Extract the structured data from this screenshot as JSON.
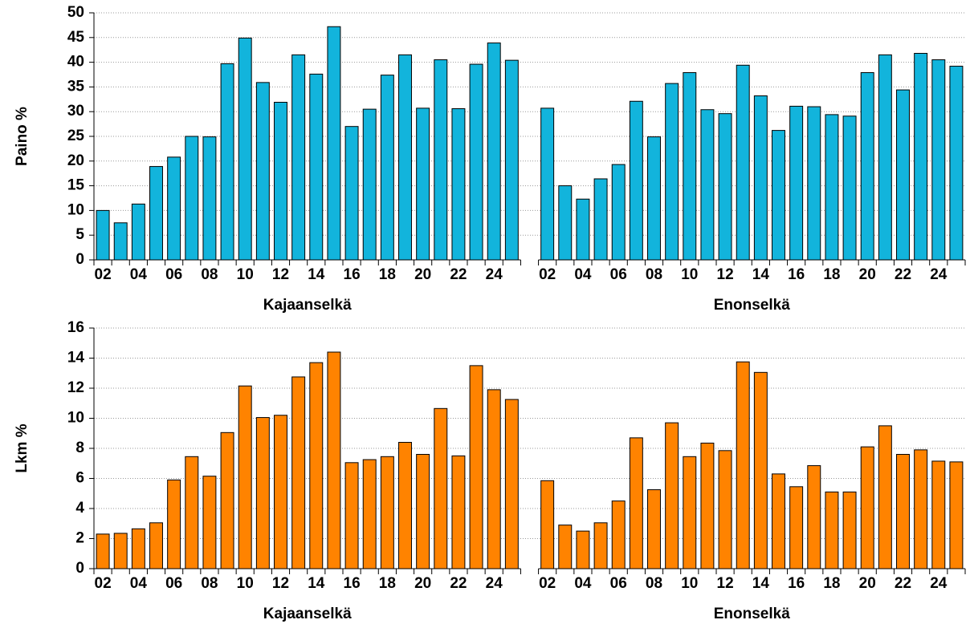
{
  "chart_data": [
    {
      "type": "bar",
      "ylabel": "Paino %",
      "color": "#12b4dc",
      "ylim": [
        0,
        50
      ],
      "yticks": [
        0,
        5,
        10,
        15,
        20,
        25,
        30,
        35,
        40,
        45,
        50
      ],
      "grid": true,
      "groups": [
        {
          "name": "Kajaanselkä",
          "categories": [
            "02",
            null,
            "04",
            null,
            "06",
            null,
            "08",
            null,
            "10",
            null,
            "12",
            null,
            "14",
            null,
            "16",
            null,
            "18",
            null,
            "20",
            null,
            "22",
            null,
            "24",
            null
          ],
          "values": [
            10,
            7.5,
            11.3,
            18.9,
            20.8,
            25,
            24.9,
            39.7,
            44.9,
            35.9,
            31.9,
            41.5,
            37.6,
            47.2,
            27,
            30.5,
            37.4,
            41.5,
            30.7,
            40.5,
            30.6,
            39.6,
            43.9,
            40.4
          ]
        },
        {
          "name": "Enonselkä",
          "categories": [
            "02",
            null,
            "04",
            null,
            "06",
            null,
            "08",
            null,
            "10",
            null,
            "12",
            null,
            "14",
            null,
            "16",
            null,
            "18",
            null,
            "20",
            null,
            "22",
            null,
            "24",
            null
          ],
          "values": [
            30.7,
            15,
            12.3,
            16.4,
            19.3,
            32.1,
            24.9,
            35.7,
            37.9,
            30.4,
            29.6,
            39.4,
            33.2,
            26.2,
            31.1,
            31,
            29.4,
            29.1,
            37.9,
            41.5,
            34.4,
            41.8,
            40.5,
            39.2
          ]
        }
      ]
    },
    {
      "type": "bar",
      "ylabel": "Lkm %",
      "color": "#ff8300",
      "ylim": [
        0,
        16
      ],
      "yticks": [
        0,
        2,
        4,
        6,
        8,
        10,
        12,
        14,
        16
      ],
      "grid": true,
      "groups": [
        {
          "name": "Kajaanselkä",
          "categories": [
            "02",
            null,
            "04",
            null,
            "06",
            null,
            "08",
            null,
            "10",
            null,
            "12",
            null,
            "14",
            null,
            "16",
            null,
            "18",
            null,
            "20",
            null,
            "22",
            null,
            "24",
            null
          ],
          "values": [
            2.3,
            2.35,
            2.65,
            3.05,
            5.9,
            7.45,
            6.15,
            9.05,
            12.15,
            10.05,
            10.2,
            12.75,
            13.7,
            14.4,
            7.05,
            7.25,
            7.45,
            8.4,
            7.6,
            10.65,
            7.5,
            13.5,
            11.9,
            11.25
          ]
        },
        {
          "name": "Enonselkä",
          "categories": [
            "02",
            null,
            "04",
            null,
            "06",
            null,
            "08",
            null,
            "10",
            null,
            "12",
            null,
            "14",
            null,
            "16",
            null,
            "18",
            null,
            "20",
            null,
            "22",
            null,
            "24",
            null
          ],
          "values": [
            5.85,
            2.9,
            2.5,
            3.05,
            4.5,
            8.7,
            5.25,
            9.7,
            7.45,
            8.35,
            7.85,
            13.75,
            13.05,
            6.3,
            5.45,
            6.85,
            5.1,
            5.1,
            8.1,
            9.5,
            7.6,
            7.9,
            7.15,
            7.1
          ]
        }
      ]
    }
  ]
}
